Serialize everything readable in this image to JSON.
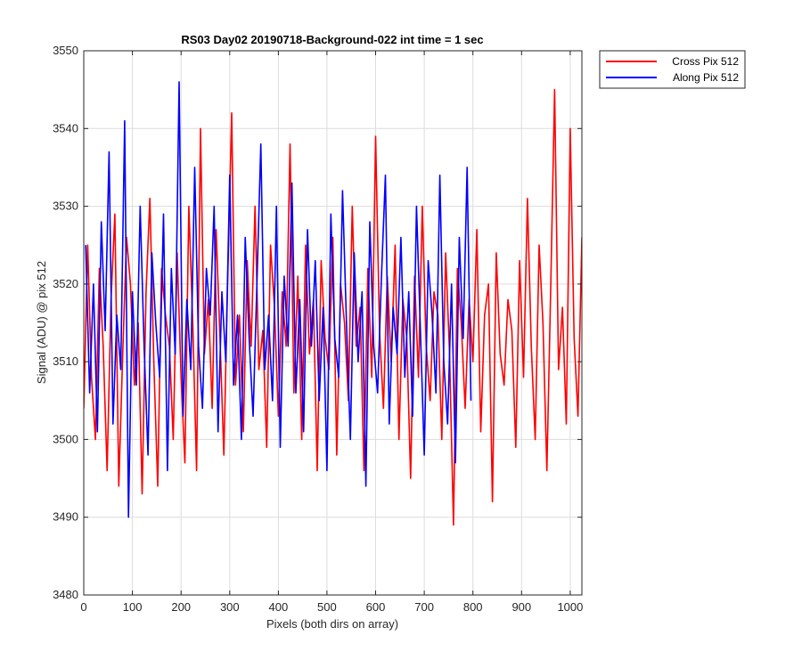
{
  "chart_data": {
    "type": "line",
    "title": "RS03 Day02 20190718-Background-022 int time = 1 sec",
    "xlabel": "Pixels (both dirs on array)",
    "ylabel": "Signal (ADU) @ pix 512",
    "xlim": [
      0,
      1024
    ],
    "ylim": [
      3480,
      3550
    ],
    "xticks": [
      0,
      100,
      200,
      300,
      400,
      500,
      600,
      700,
      800,
      900,
      1000
    ],
    "yticks": [
      3480,
      3490,
      3500,
      3510,
      3520,
      3530,
      3540,
      3550
    ],
    "grid": true,
    "legend_position": "outside-top-right",
    "series": [
      {
        "name": "Cross Pix 512",
        "color": "#ff0000",
        "x_start": 0,
        "x_step": 8,
        "values": [
          3504,
          3525,
          3508,
          3500,
          3522,
          3512,
          3496,
          3518,
          3529,
          3494,
          3511,
          3526,
          3520,
          3507,
          3515,
          3493,
          3519,
          3531,
          3510,
          3494,
          3522,
          3516,
          3512,
          3500,
          3524,
          3508,
          3497,
          3530,
          3515,
          3496,
          3540,
          3511,
          3518,
          3504,
          3527,
          3513,
          3498,
          3521,
          3542,
          3507,
          3516,
          3501,
          3523,
          3512,
          3530,
          3509,
          3514,
          3499,
          3525,
          3517,
          3503,
          3519,
          3512,
          3538,
          3506,
          3521,
          3500,
          3525,
          3511,
          3518,
          3496,
          3523,
          3513,
          3509,
          3526,
          3498,
          3520,
          3515,
          3505,
          3530,
          3512,
          3517,
          3496,
          3522,
          3508,
          3539,
          3514,
          3504,
          3521,
          3510,
          3525,
          3500,
          3518,
          3513,
          3495,
          3521,
          3508,
          3530,
          3512,
          3505,
          3519,
          3516,
          3500,
          3524,
          3511,
          3489,
          3522,
          3515,
          3504,
          3518,
          3510,
          3527,
          3501,
          3516,
          3520,
          3492,
          3524,
          3511,
          3507,
          3518,
          3514,
          3499,
          3523,
          3508,
          3531,
          3512,
          3500,
          3525,
          3515,
          3496,
          3520,
          3545,
          3509,
          3517,
          3502,
          3540,
          3513,
          3503,
          3526,
          3519
        ]
      },
      {
        "name": "Along Pix 512",
        "color": "#0000ff",
        "x_start": 4,
        "x_step": 8,
        "values": [
          3525,
          3506,
          3520,
          3501,
          3528,
          3514,
          3537,
          3502,
          3516,
          3509,
          3541,
          3490,
          3519,
          3507,
          3530,
          3512,
          3498,
          3524,
          3515,
          3508,
          3529,
          3496,
          3522,
          3511,
          3546,
          3503,
          3518,
          3509,
          3535,
          3512,
          3504,
          3522,
          3516,
          3530,
          3501,
          3519,
          3510,
          3534,
          3507,
          3516,
          3500,
          3526,
          3513,
          3503,
          3520,
          3538,
          3509,
          3516,
          3505,
          3530,
          3499,
          3521,
          3512,
          3533,
          3506,
          3518,
          3501,
          3527,
          3512,
          3523,
          3505,
          3517,
          3496,
          3529,
          3513,
          3508,
          3532,
          3515,
          3500,
          3524,
          3510,
          3519,
          3494,
          3528,
          3512,
          3506,
          3521,
          3534,
          3502,
          3517,
          3511,
          3526,
          3508,
          3519,
          3503,
          3530,
          3514,
          3498,
          3523,
          3516,
          3506,
          3534,
          3510,
          3502,
          3520,
          3497,
          3526,
          3513,
          3535,
          3505
        ]
      }
    ]
  }
}
